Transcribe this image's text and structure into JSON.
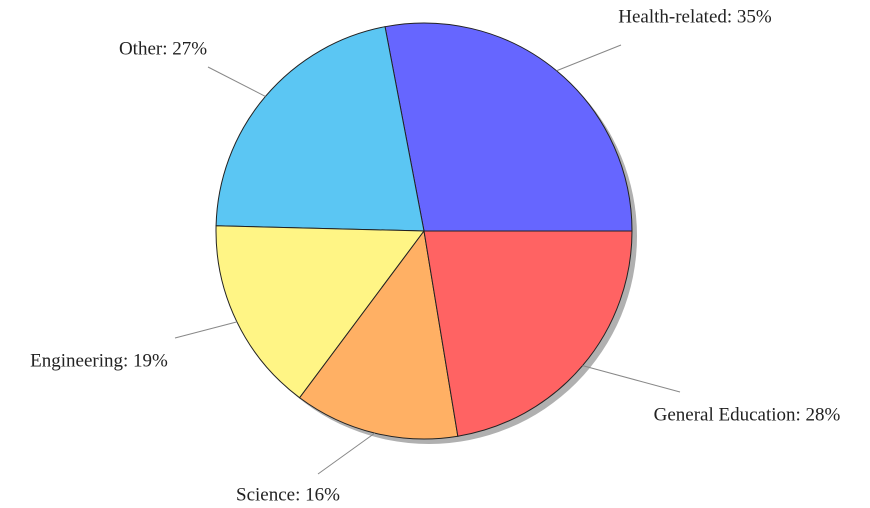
{
  "chart_data": {
    "type": "pie",
    "labels": [
      "Health-related: 35%",
      "Other: 27%",
      "Engineering: 19%",
      "Science: 16%",
      "General Education: 28%"
    ],
    "values": [
      35,
      27,
      19,
      16,
      28
    ],
    "colors": [
      "#6666ff",
      "#5bc6f3",
      "#fff585",
      "#ffb064",
      "#ff6363"
    ],
    "shadow": true
  }
}
